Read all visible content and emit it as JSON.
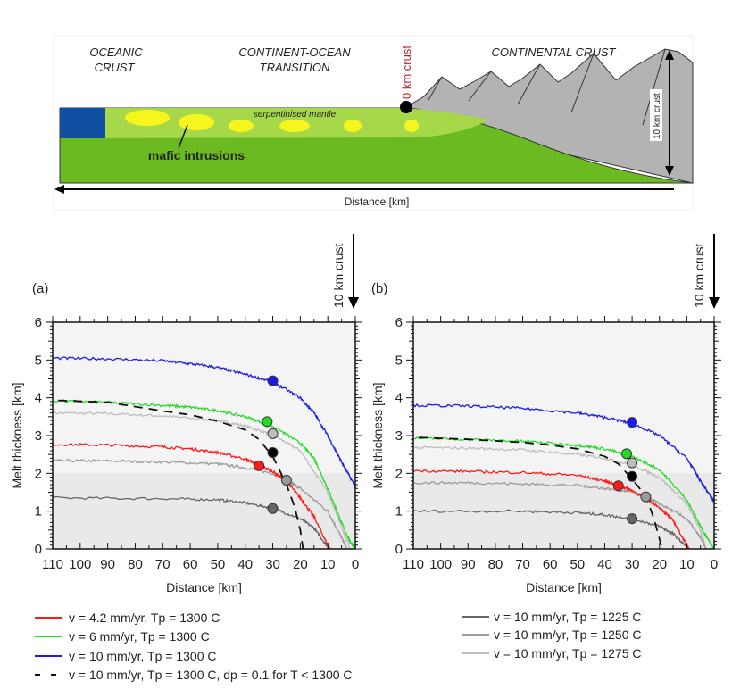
{
  "diagram": {
    "labels": {
      "oceanic_1": "OCEANIC",
      "oceanic_2": "CRUST",
      "cot_1": "CONTINENT-OCEAN",
      "cot_2": "TRANSITION",
      "continental": "CONTINENTAL CRUST",
      "zero_crust": "0 km crust",
      "ten_crust": "10 km crust",
      "serpentinised": "serpentinised mantle",
      "mafic": "mafic intrusions",
      "distance": "Distance [km]"
    },
    "colors": {
      "ocean_crust": "#0f4fa0",
      "mantle_light": "#a6d84a",
      "mantle": "#6cba21",
      "intrusions": "#f7f51e",
      "continent": "#b3b3b3",
      "zero_crust_label": "#c0272d"
    }
  },
  "crust_marker_label": "10 km crust",
  "panel_labels": [
    "(a)",
    "(b)"
  ],
  "chart_data": [
    {
      "type": "line",
      "panel": "a",
      "xlabel": "Distance [km]",
      "ylabel": "Melt thickness [km]",
      "xlim": [
        110,
        0
      ],
      "ylim": [
        0,
        6
      ],
      "x_reversed": true,
      "xticks": [
        110,
        100,
        90,
        80,
        70,
        60,
        50,
        40,
        30,
        20,
        10,
        0
      ],
      "yticks": [
        0,
        1,
        2,
        3,
        4,
        5,
        6
      ],
      "shaded_band_below": 2,
      "series": [
        {
          "key": "tp1275",
          "color": "#bdbdbd",
          "dash": false,
          "x": [
            110,
            90,
            70,
            50,
            40,
            30,
            20,
            10,
            5,
            2
          ],
          "y": [
            3.6,
            3.58,
            3.52,
            3.4,
            3.25,
            3.02,
            2.6,
            1.5,
            0.6,
            0
          ]
        },
        {
          "key": "tp1250",
          "color": "#9a9a9a",
          "dash": false,
          "x": [
            110,
            90,
            70,
            50,
            40,
            30,
            25,
            20,
            10,
            5,
            3
          ],
          "y": [
            2.33,
            2.33,
            2.3,
            2.25,
            2.15,
            2.0,
            1.82,
            1.6,
            1.0,
            0.3,
            0
          ]
        },
        {
          "key": "tp1225",
          "color": "#666666",
          "dash": false,
          "x": [
            110,
            70,
            50,
            40,
            30,
            20,
            15,
            10,
            9
          ],
          "y": [
            1.35,
            1.33,
            1.3,
            1.22,
            1.08,
            0.8,
            0.55,
            0.05,
            0
          ]
        },
        {
          "key": "v42",
          "color": "#ff1a1a",
          "dash": false,
          "x": [
            110,
            90,
            70,
            60,
            50,
            40,
            35,
            30,
            25,
            20,
            15,
            10,
            9
          ],
          "y": [
            2.77,
            2.75,
            2.7,
            2.65,
            2.55,
            2.38,
            2.22,
            2.05,
            1.8,
            1.35,
            0.85,
            0.1,
            0
          ]
        },
        {
          "key": "v6",
          "color": "#22dd22",
          "dash": false,
          "x": [
            110,
            90,
            70,
            60,
            50,
            40,
            30,
            20,
            15,
            10,
            5,
            2,
            0
          ],
          "y": [
            3.92,
            3.88,
            3.8,
            3.75,
            3.66,
            3.5,
            3.25,
            2.8,
            2.4,
            1.6,
            0.7,
            0.2,
            0
          ]
        },
        {
          "key": "v10",
          "color": "#1a1aee",
          "dash": false,
          "x": [
            110,
            90,
            70,
            60,
            50,
            40,
            30,
            20,
            15,
            10,
            5,
            0
          ],
          "y": [
            5.05,
            5.03,
            4.98,
            4.9,
            4.8,
            4.62,
            4.42,
            4.0,
            3.6,
            3.0,
            2.3,
            1.65
          ]
        },
        {
          "key": "v10dp",
          "color": "#111111",
          "dash": true,
          "x": [
            108,
            90,
            70,
            60,
            50,
            40,
            35,
            30,
            25,
            22,
            20,
            19
          ],
          "y": [
            3.93,
            3.88,
            3.65,
            3.55,
            3.38,
            3.15,
            2.9,
            2.45,
            1.7,
            1.1,
            0.5,
            0
          ]
        }
      ],
      "markers": [
        {
          "color": "#1a1aee",
          "x": 30,
          "y": 4.45
        },
        {
          "color": "#22dd22",
          "x": 32,
          "y": 3.37
        },
        {
          "color": "#bdbdbd",
          "x": 30,
          "y": 3.05
        },
        {
          "color": "#000000",
          "x": 30,
          "y": 2.55
        },
        {
          "color": "#ff1a1a",
          "x": 35,
          "y": 2.2
        },
        {
          "color": "#9a9a9a",
          "x": 25,
          "y": 1.82
        },
        {
          "color": "#666666",
          "x": 30,
          "y": 1.07
        }
      ]
    },
    {
      "type": "line",
      "panel": "b",
      "xlabel": "Distance [km]",
      "ylabel": "Melt thickness [km]",
      "xlim": [
        110,
        0
      ],
      "ylim": [
        0,
        6
      ],
      "x_reversed": true,
      "xticks": [
        110,
        100,
        90,
        80,
        70,
        60,
        50,
        40,
        30,
        20,
        10,
        0
      ],
      "yticks": [
        0,
        1,
        2,
        3,
        4,
        5,
        6
      ],
      "shaded_band_below": 2,
      "series": [
        {
          "key": "tp1275",
          "color": "#bdbdbd",
          "dash": false,
          "x": [
            110,
            90,
            70,
            50,
            40,
            30,
            20,
            10,
            5,
            3
          ],
          "y": [
            2.68,
            2.67,
            2.62,
            2.5,
            2.4,
            2.22,
            1.9,
            1.2,
            0.5,
            0
          ]
        },
        {
          "key": "tp1250",
          "color": "#9a9a9a",
          "dash": false,
          "x": [
            110,
            90,
            70,
            50,
            40,
            30,
            25,
            20,
            10,
            5,
            3
          ],
          "y": [
            1.75,
            1.75,
            1.72,
            1.68,
            1.6,
            1.52,
            1.38,
            1.2,
            0.8,
            0.3,
            0
          ]
        },
        {
          "key": "tp1225",
          "color": "#666666",
          "dash": false,
          "x": [
            110,
            70,
            50,
            40,
            30,
            20,
            15,
            10,
            9
          ],
          "y": [
            1.0,
            1.0,
            0.96,
            0.9,
            0.8,
            0.6,
            0.4,
            0.05,
            0
          ]
        },
        {
          "key": "v42",
          "color": "#ff1a1a",
          "dash": false,
          "x": [
            110,
            90,
            70,
            50,
            40,
            35,
            30,
            20,
            15,
            10,
            9
          ],
          "y": [
            2.07,
            2.05,
            2.02,
            1.95,
            1.8,
            1.68,
            1.55,
            1.1,
            0.75,
            0.1,
            0
          ]
        },
        {
          "key": "v6",
          "color": "#22dd22",
          "dash": false,
          "x": [
            110,
            90,
            70,
            50,
            40,
            30,
            20,
            10,
            5,
            0
          ],
          "y": [
            2.93,
            2.9,
            2.85,
            2.75,
            2.65,
            2.45,
            2.1,
            1.3,
            0.6,
            0
          ]
        },
        {
          "key": "v10",
          "color": "#1a1aee",
          "dash": false,
          "x": [
            110,
            90,
            70,
            50,
            40,
            30,
            20,
            10,
            5,
            0
          ],
          "y": [
            3.8,
            3.78,
            3.72,
            3.6,
            3.48,
            3.32,
            3.0,
            2.4,
            1.8,
            1.25
          ]
        },
        {
          "key": "v10dp",
          "color": "#111111",
          "dash": true,
          "x": [
            108,
            90,
            70,
            60,
            50,
            40,
            35,
            30,
            25,
            22,
            19
          ],
          "y": [
            2.95,
            2.9,
            2.82,
            2.75,
            2.65,
            2.45,
            2.25,
            1.85,
            1.4,
            0.8,
            0
          ]
        }
      ],
      "markers": [
        {
          "color": "#1a1aee",
          "x": 30,
          "y": 3.35
        },
        {
          "color": "#22dd22",
          "x": 32,
          "y": 2.52
        },
        {
          "color": "#bdbdbd",
          "x": 30,
          "y": 2.28
        },
        {
          "color": "#000000",
          "x": 30,
          "y": 1.92
        },
        {
          "color": "#ff1a1a",
          "x": 35,
          "y": 1.67
        },
        {
          "color": "#9a9a9a",
          "x": 25,
          "y": 1.38
        },
        {
          "color": "#666666",
          "x": 30,
          "y": 0.8
        }
      ]
    }
  ],
  "legend": {
    "left": [
      {
        "label": "v = 4.2 mm/yr, Tp = 1300 C",
        "color": "#ff1a1a",
        "dash": false
      },
      {
        "label": "v = 6 mm/yr, Tp = 1300 C",
        "color": "#22dd22",
        "dash": false
      },
      {
        "label": "v = 10 mm/yr, Tp = 1300 C",
        "color": "#1a1aee",
        "dash": false
      },
      {
        "label": "v = 10 mm/yr, Tp = 1300 C, dp = 0.1 for T < 1300 C",
        "color": "#111111",
        "dash": true
      }
    ],
    "right": [
      {
        "label": "v = 10 mm/yr, Tp = 1225 C",
        "color": "#666666",
        "dash": false
      },
      {
        "label": "v = 10 mm/yr, Tp = 1250 C",
        "color": "#9a9a9a",
        "dash": false
      },
      {
        "label": "v = 10 mm/yr, Tp = 1275 C",
        "color": "#bdbdbd",
        "dash": false
      }
    ]
  }
}
